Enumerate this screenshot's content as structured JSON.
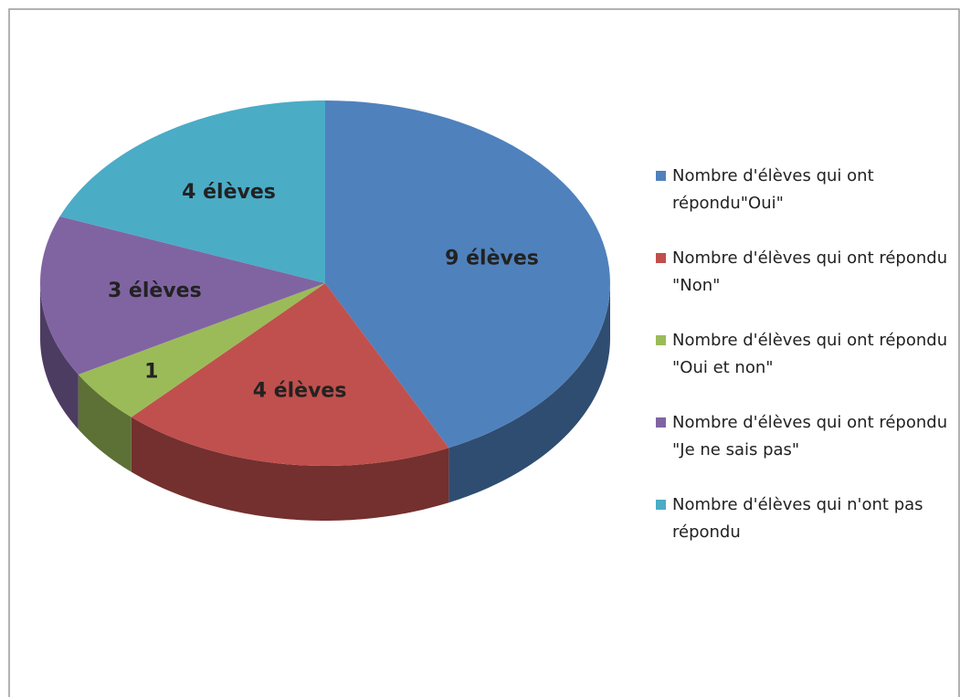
{
  "chart_data": {
    "type": "pie",
    "categories": [
      "Nombre d'élèves qui ont répondu\"Oui\"",
      "Nombre d'élèves qui ont répondu \"Non\"",
      "Nombre d'élèves qui ont répondu \"Oui et non\"",
      "Nombre d'élèves qui ont répondu \"Je ne sais pas\"",
      "Nombre d'élèves qui n'ont pas répondu"
    ],
    "values": [
      9,
      4,
      1,
      3,
      4
    ],
    "value_labels": [
      "9 élèves",
      "4 élèves",
      "1",
      "3 élèves",
      "4 élèves"
    ],
    "colors": [
      "#4f81bd",
      "#c0504d",
      "#9bbb59",
      "#8064a2",
      "#4bacc6"
    ],
    "legend": "right"
  }
}
